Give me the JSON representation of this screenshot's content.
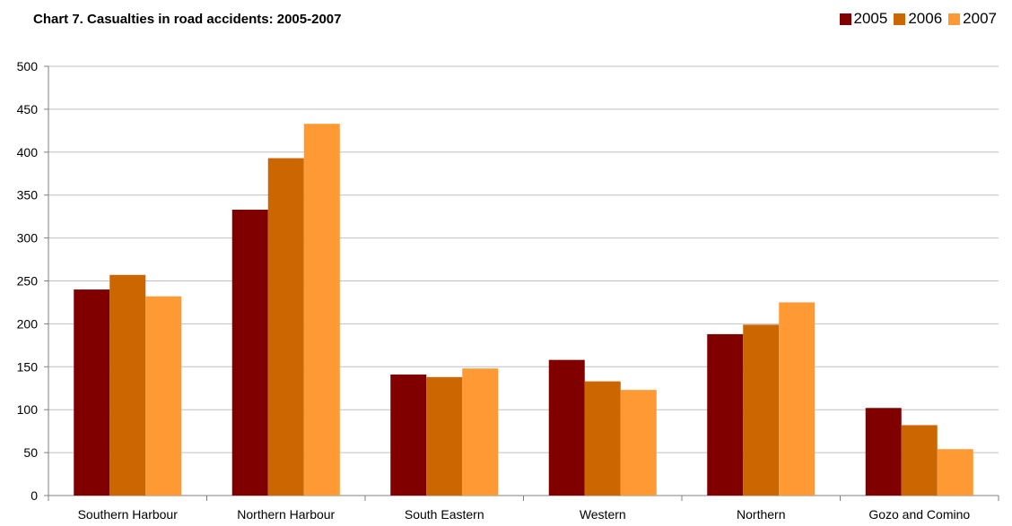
{
  "chart_data": {
    "type": "bar",
    "title": "Chart 7. Casualties in road accidents: 2005-2007",
    "xlabel": "",
    "ylabel": "",
    "ylim": [
      0,
      500
    ],
    "yticks": [
      "0",
      "50",
      "100",
      "150",
      "200",
      "250",
      "300",
      "350",
      "400",
      "450",
      "500"
    ],
    "categories": [
      "Southern Harbour",
      "Northern Harbour",
      "South Eastern",
      "Western",
      "Northern",
      "Gozo and Comino"
    ],
    "series": [
      {
        "name": "2005",
        "color": "#800000",
        "values": [
          240,
          333,
          141,
          158,
          188,
          102
        ]
      },
      {
        "name": "2006",
        "color": "#cc6600",
        "values": [
          257,
          393,
          138,
          133,
          199,
          82
        ]
      },
      {
        "name": "2007",
        "color": "#ff9933",
        "values": [
          232,
          433,
          148,
          123,
          225,
          54
        ]
      }
    ],
    "grid": true,
    "legend_position": "top-right"
  }
}
